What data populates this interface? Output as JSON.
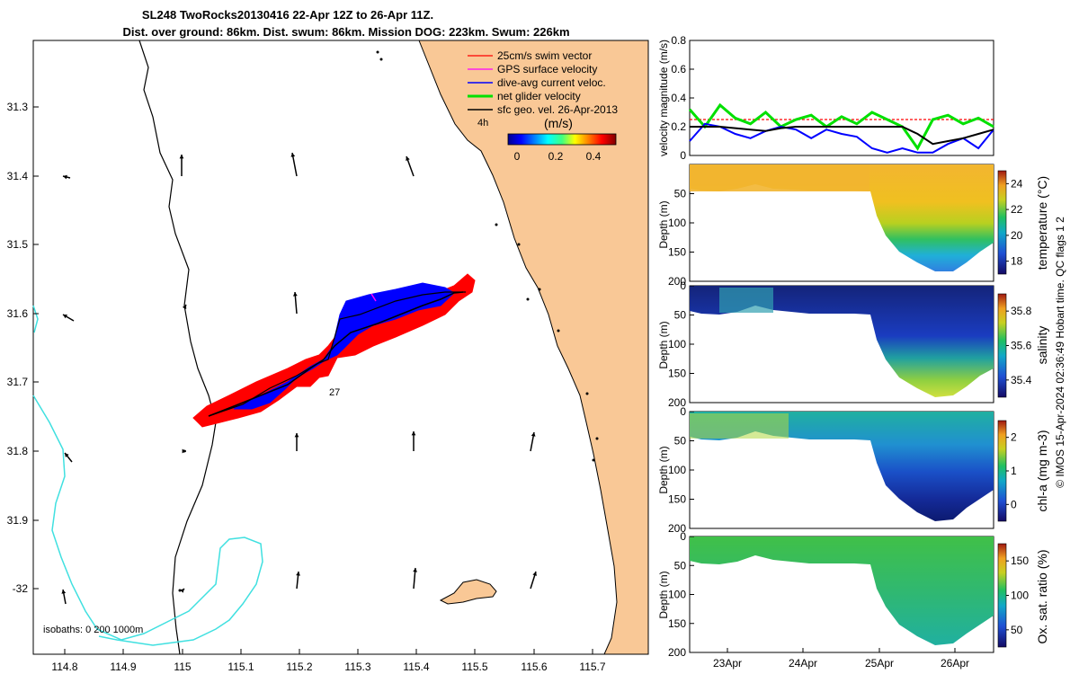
{
  "title": {
    "line1": "SL248 TwoRocks20130416 22-Apr 12Z to 26-Apr 11Z.",
    "line2": "Dist. over ground: 86km. Dist. swum: 86km. Mission DOG: 223km. Swum: 226km"
  },
  "map": {
    "xticks": [
      "114.8",
      "114.9",
      "115",
      "115.1",
      "115.2",
      "115.3",
      "115.4",
      "115.5",
      "115.6",
      "115.7"
    ],
    "yticks": [
      "31.3",
      "31.4",
      "31.5",
      "31.6",
      "31.7",
      "31.8",
      "31.9",
      "-32"
    ],
    "isobaths_label": "isobaths: 0   200  1000m",
    "marker_4h": "4h",
    "marker_27": "27",
    "speed_cb_title": "(m/s)",
    "speed_cb_ticks": [
      "0",
      "0.2",
      "0.4"
    ],
    "legend": [
      {
        "label": "25cm/s swim vector",
        "color": "#ff0000"
      },
      {
        "label": "GPS surface velocity",
        "color": "#ff00ff"
      },
      {
        "label": "dive-avg current veloc.",
        "color": "#0000ff"
      },
      {
        "label": "net glider velocity",
        "color": "#00e000"
      },
      {
        "label": "sfc geo. vel. 26-Apr-2013",
        "color": "#000000"
      }
    ],
    "colors": {
      "land": "#f9c896",
      "coast": "#000000",
      "isobath1000": "#40e0e0",
      "track_red": "#ff0000",
      "track_blue": "#0000ff"
    }
  },
  "chart_data": [
    {
      "type": "line",
      "title": "",
      "ylabel": "velocity magnitude (m/s)",
      "ylim": [
        0,
        0.8
      ],
      "yticks": [
        "0",
        "0.2",
        "0.4",
        "0.6",
        "0.8"
      ],
      "x": [
        0,
        0.05,
        0.1,
        0.15,
        0.2,
        0.25,
        0.3,
        0.35,
        0.4,
        0.45,
        0.5,
        0.55,
        0.6,
        0.65,
        0.7,
        0.75,
        0.8,
        0.85,
        0.9,
        0.95,
        1
      ],
      "series": [
        {
          "name": "25cm/s swim vector",
          "color": "#ff0000",
          "values": [
            0.25,
            0.25,
            0.25,
            0.25,
            0.25,
            0.25,
            0.25,
            0.25,
            0.25,
            0.25,
            0.25,
            0.25,
            0.25,
            0.25,
            0.25,
            0.25,
            0.25,
            0.25,
            0.25,
            0.25,
            0.25
          ]
        },
        {
          "name": "net glider velocity",
          "color": "#00e000",
          "values": [
            0.32,
            0.2,
            0.35,
            0.26,
            0.22,
            0.3,
            0.2,
            0.25,
            0.28,
            0.2,
            0.27,
            0.22,
            0.3,
            0.25,
            0.2,
            0.05,
            0.25,
            0.28,
            0.22,
            0.26,
            0.2
          ]
        },
        {
          "name": "dive-avg current veloc.",
          "color": "#0000ff",
          "values": [
            0.1,
            0.22,
            0.2,
            0.15,
            0.12,
            0.17,
            0.2,
            0.18,
            0.12,
            0.18,
            0.15,
            0.13,
            0.05,
            0.02,
            0.05,
            0.02,
            0.02,
            0.08,
            0.12,
            0.05,
            0.18
          ]
        },
        {
          "name": "sfc geo. vel. 26-Apr-2013",
          "color": "#000000",
          "values": [
            0.2,
            0.2,
            0.2,
            0.19,
            0.18,
            0.17,
            0.19,
            0.2,
            0.2,
            0.2,
            0.2,
            0.2,
            0.2,
            0.2,
            0.2,
            0.15,
            0.08,
            0.1,
            0.12,
            0.15,
            0.18
          ]
        }
      ]
    },
    {
      "type": "heatmap",
      "ylabel": "Depth (m)",
      "cblabel": "temperature (°C)",
      "cbticks": [
        "18",
        "20",
        "22",
        "24"
      ],
      "yticks": [
        "50",
        "100",
        "150",
        "200"
      ],
      "ylim": [
        0,
        200
      ]
    },
    {
      "type": "heatmap",
      "ylabel": "Depth (m)",
      "cblabel": "salinity",
      "cbticks": [
        "35.4",
        "35.6",
        "35.8"
      ],
      "yticks": [
        "0",
        "50",
        "100",
        "150",
        "200"
      ],
      "ylim": [
        0,
        200
      ]
    },
    {
      "type": "heatmap",
      "ylabel": "Depth (m)",
      "cblabel": "chl-a (mg m-3)",
      "cbticks": [
        "0",
        "1",
        "2"
      ],
      "yticks": [
        "0",
        "50",
        "100",
        "150",
        "200"
      ],
      "ylim": [
        0,
        200
      ]
    },
    {
      "type": "heatmap",
      "ylabel": "Depth (m)",
      "cblabel": "Ox. sat. ratio (%)",
      "cbticks": [
        "50",
        "100",
        "150"
      ],
      "yticks": [
        "0",
        "50",
        "100",
        "150",
        "200"
      ],
      "ylim": [
        0,
        200
      ],
      "xticks": [
        "23Apr",
        "24Apr",
        "25Apr",
        "26Apr"
      ]
    }
  ],
  "credit": "© IMOS 15-Apr-2024 02:36:49 Hobart time. QC flags 1  2"
}
